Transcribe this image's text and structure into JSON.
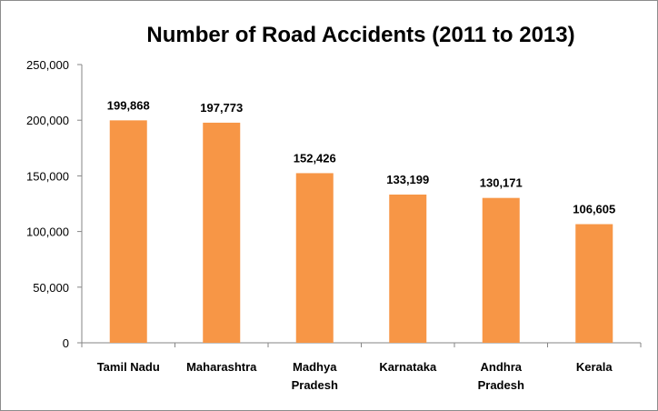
{
  "chart_data": {
    "type": "bar",
    "title": "Number of Road Accidents (2011 to 2013)",
    "categories": [
      [
        "Tamil Nadu"
      ],
      [
        "Maharashtra"
      ],
      [
        "Madhya",
        "Pradesh"
      ],
      [
        "Karnataka"
      ],
      [
        "Andhra",
        "Pradesh"
      ],
      [
        "Kerala"
      ]
    ],
    "values": [
      199868,
      197773,
      152426,
      133199,
      130171,
      106605
    ],
    "data_labels": [
      "199,868",
      "197,773",
      "152,426",
      "133,199",
      "130,171",
      "106,605"
    ],
    "y_ticks": [
      "0",
      "50,000",
      "100,000",
      "150,000",
      "200,000",
      "250,000"
    ],
    "ylim": [
      0,
      250000
    ],
    "xlabel": "",
    "ylabel": "",
    "grid": false,
    "legend": false,
    "bar_color": "#F79646"
  }
}
